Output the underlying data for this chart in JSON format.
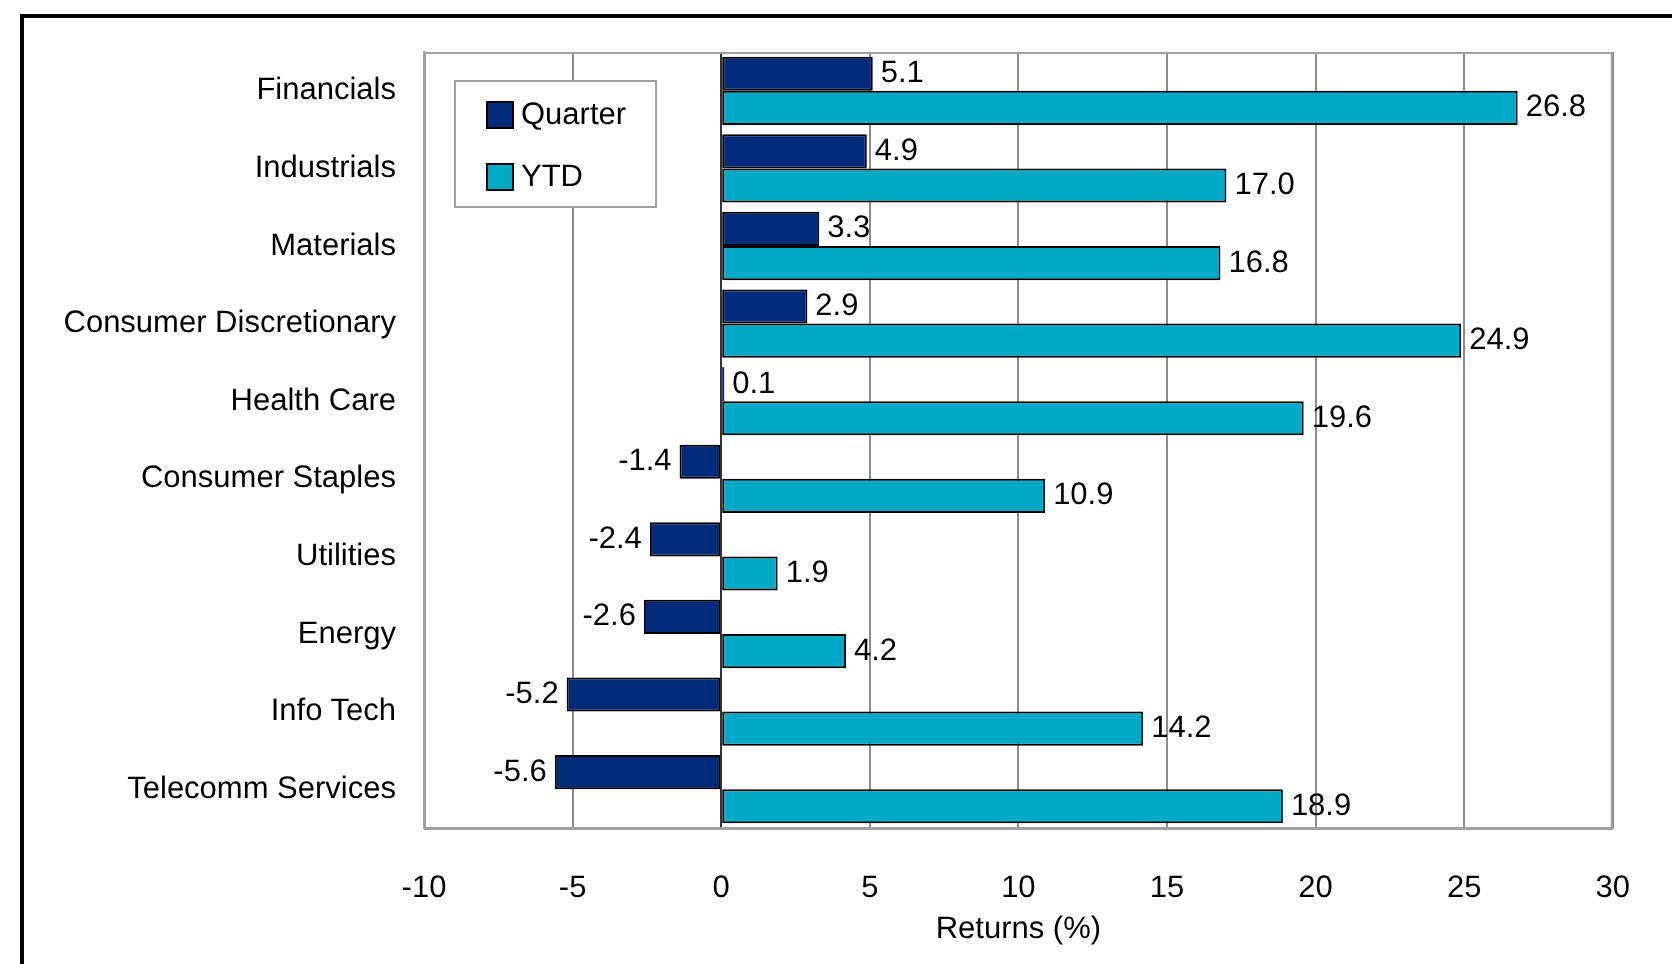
{
  "chart_data": {
    "type": "bar",
    "orientation": "horizontal",
    "categories": [
      "Financials",
      "Industrials",
      "Materials",
      "Consumer Discretionary",
      "Health Care",
      "Consumer Staples",
      "Utilities",
      "Energy",
      "Info Tech",
      "Telecomm Services"
    ],
    "series": [
      {
        "name": "Quarter",
        "color": "#002a7a",
        "values": [
          5.1,
          4.9,
          3.3,
          2.9,
          0.1,
          -1.4,
          -2.4,
          -2.6,
          -5.2,
          -5.6
        ],
        "value_labels": [
          "5.1",
          "4.9",
          "3.3",
          "2.9",
          "0.1",
          "-1.4",
          "-2.4",
          "-2.6",
          "-5.2",
          "-5.6"
        ]
      },
      {
        "name": "YTD",
        "color": "#00a9c6",
        "values": [
          26.8,
          17.0,
          16.8,
          24.9,
          19.6,
          10.9,
          1.9,
          4.2,
          14.2,
          18.9
        ],
        "value_labels": [
          "26.8",
          "17.0",
          "16.8",
          "24.9",
          "19.6",
          "10.9",
          "1.9",
          "4.2",
          "14.2",
          "18.9"
        ]
      }
    ],
    "xlabel": "Returns (%)",
    "xlim": [
      -10,
      30
    ],
    "xticks": [
      -10,
      -5,
      0,
      5,
      10,
      15,
      20,
      25,
      30
    ],
    "grid": "x",
    "legend": "top left"
  }
}
